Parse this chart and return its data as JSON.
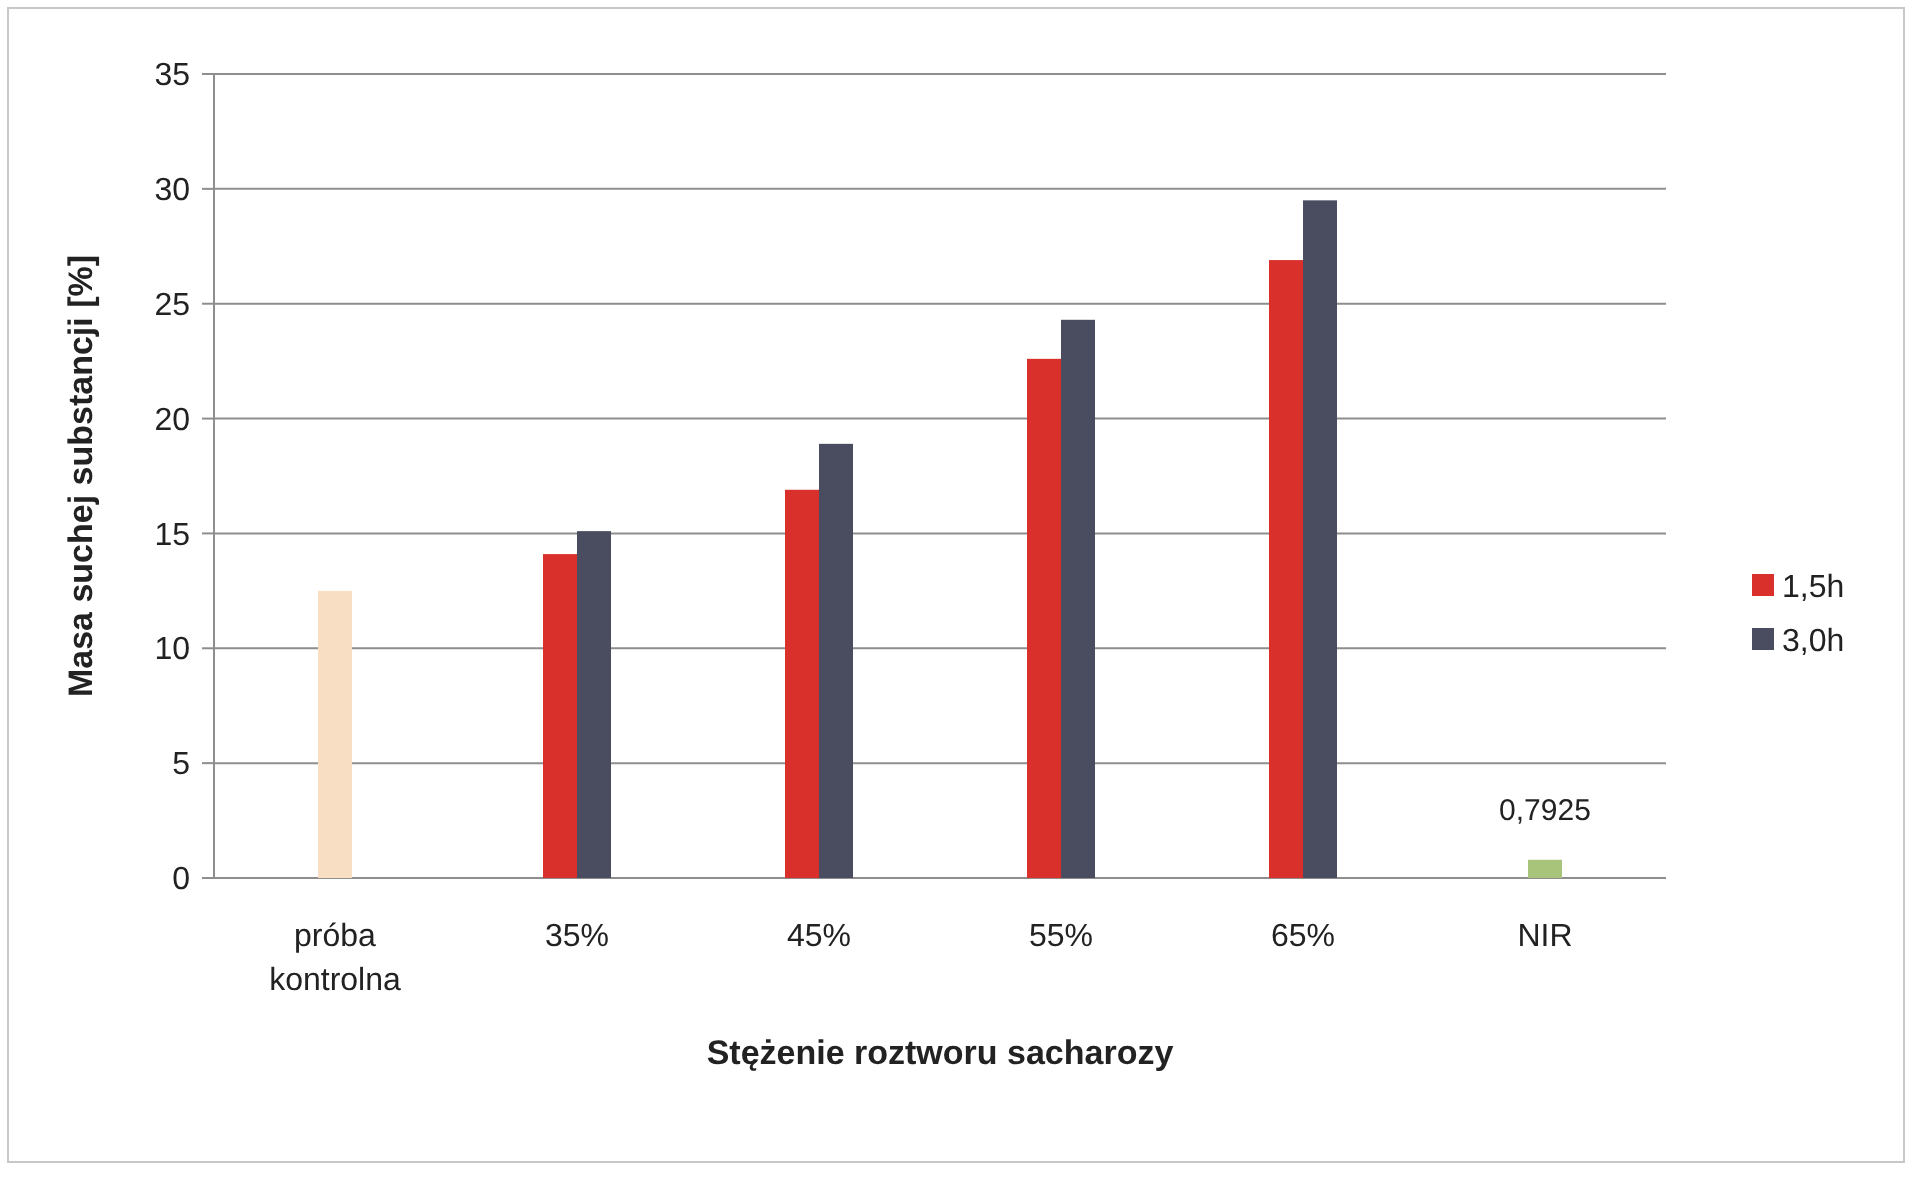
{
  "chart_data": {
    "type": "bar",
    "xlabel": "Stężenie roztworu sacharozy",
    "ylabel": "Masa suchej substancji [%]",
    "categories": [
      "próba\nkontrolna",
      "35%",
      "45%",
      "55%",
      "65%",
      "NIR"
    ],
    "series": [
      {
        "name": "1,5h",
        "color": "#d9302c",
        "values": [
          null,
          14.1,
          16.9,
          22.6,
          26.9,
          null
        ]
      },
      {
        "name": "3,0h",
        "color": "#4a4d60",
        "values": [
          null,
          15.1,
          18.9,
          24.3,
          29.5,
          null
        ]
      },
      {
        "colors": [
          "#f8dfc4",
          null,
          null,
          null,
          null,
          "#a8c47a"
        ],
        "values": [
          12.5,
          null,
          null,
          null,
          null,
          0.7925
        ],
        "value_labels": [
          null,
          null,
          null,
          null,
          null,
          "0,7925"
        ]
      }
    ],
    "ylim": [
      0,
      35
    ],
    "yticks": [
      0,
      5,
      10,
      15,
      20,
      25,
      30,
      35
    ],
    "grid": "y",
    "legend": "right"
  }
}
